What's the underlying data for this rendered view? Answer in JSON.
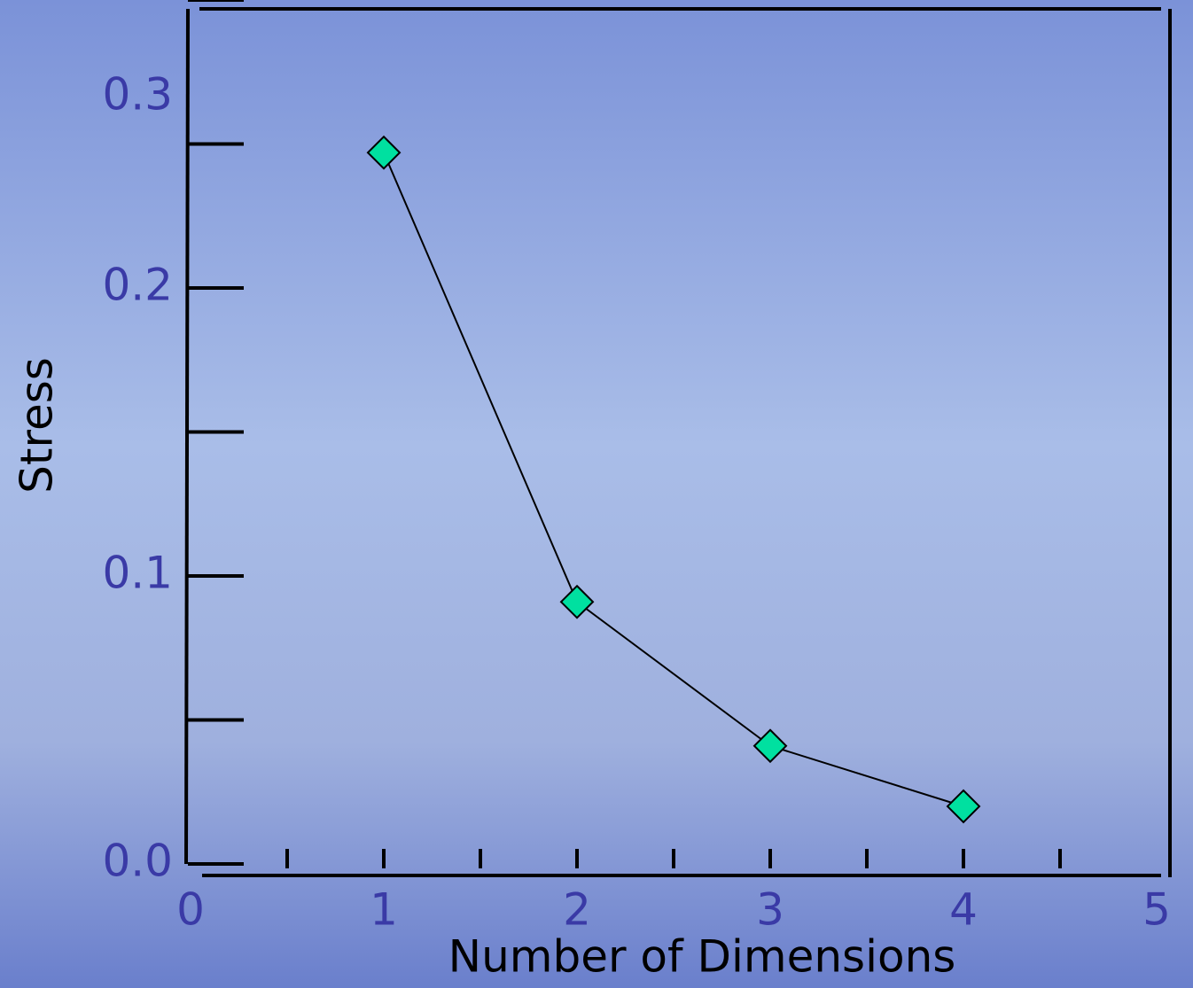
{
  "chart_data": {
    "type": "line",
    "x_label": "Number of Dimensions",
    "y_label": "Stress",
    "x": [
      1,
      2,
      3,
      4
    ],
    "series": [
      {
        "values": [
          0.247,
          0.091,
          0.041,
          0.02
        ],
        "color": "#00e0a0"
      }
    ],
    "xlim": [
      0,
      5
    ],
    "xticks": [
      0,
      1,
      2,
      3,
      4,
      5
    ],
    "xminor": [
      0.5,
      1.5,
      2.5,
      3.5,
      4.5
    ],
    "ylim": [
      0,
      0.3
    ],
    "yticks": [
      {
        "value": 0,
        "label": "0.0"
      },
      0.1,
      0.2,
      0.3
    ],
    "yminor": [
      0.05,
      0.15,
      0.25
    ]
  }
}
